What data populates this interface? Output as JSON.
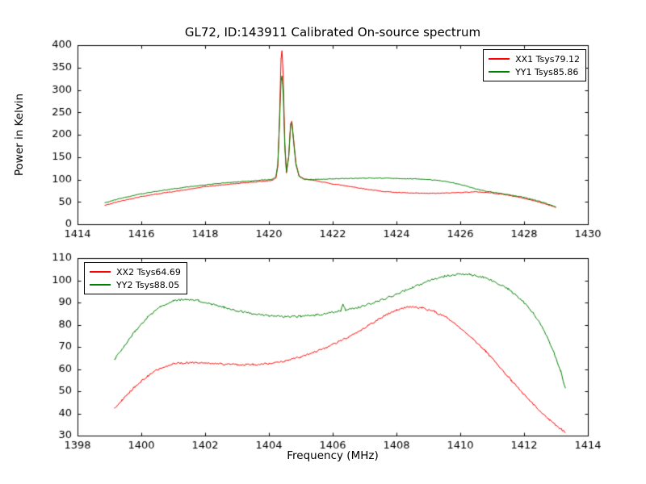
{
  "chart_data": [
    {
      "type": "line",
      "title": "GL72, ID:143911 Calibrated On-source spectrum",
      "xlabel": "",
      "ylabel": "Power in Kelvin",
      "xlim": [
        1414,
        1430
      ],
      "ylim": [
        0,
        400
      ],
      "xticks": [
        1414,
        1416,
        1418,
        1420,
        1422,
        1424,
        1426,
        1428,
        1430
      ],
      "yticks": [
        0,
        50,
        100,
        150,
        200,
        250,
        300,
        350,
        400
      ],
      "grid": false,
      "legend_position": "upper right",
      "series": [
        {
          "name": "XX1 Tsys79.12",
          "color": "#ff0000",
          "noise": 0.7,
          "points": [
            [
              1414.85,
              42
            ],
            [
              1415.3,
              51
            ],
            [
              1416,
              62
            ],
            [
              1416.7,
              70
            ],
            [
              1417.4,
              77
            ],
            [
              1418,
              84
            ],
            [
              1418.7,
              89
            ],
            [
              1419.3,
              93
            ],
            [
              1419.8,
              96
            ],
            [
              1420.1,
              98
            ],
            [
              1420.22,
              103
            ],
            [
              1420.28,
              130
            ],
            [
              1420.33,
              230
            ],
            [
              1420.38,
              370
            ],
            [
              1420.41,
              388
            ],
            [
              1420.45,
              330
            ],
            [
              1420.5,
              180
            ],
            [
              1420.55,
              115
            ],
            [
              1420.62,
              150
            ],
            [
              1420.68,
              225
            ],
            [
              1420.72,
              230
            ],
            [
              1420.78,
              185
            ],
            [
              1420.85,
              135
            ],
            [
              1420.95,
              108
            ],
            [
              1421.1,
              101
            ],
            [
              1421.5,
              97
            ],
            [
              1422,
              90
            ],
            [
              1422.5,
              85
            ],
            [
              1423,
              79
            ],
            [
              1423.5,
              74
            ],
            [
              1424,
              71
            ],
            [
              1424.5,
              69.5
            ],
            [
              1425,
              69
            ],
            [
              1425.5,
              69.5
            ],
            [
              1426,
              71
            ],
            [
              1426.5,
              72.5
            ],
            [
              1427,
              70
            ],
            [
              1427.5,
              65
            ],
            [
              1428,
              58
            ],
            [
              1428.5,
              49
            ],
            [
              1429,
              38
            ]
          ]
        },
        {
          "name": "YY1 Tsys85.86",
          "color": "#008000",
          "noise": 0.7,
          "points": [
            [
              1414.85,
              48
            ],
            [
              1415.3,
              57
            ],
            [
              1416,
              68
            ],
            [
              1416.7,
              76
            ],
            [
              1417.4,
              83
            ],
            [
              1418,
              88
            ],
            [
              1418.7,
              93
            ],
            [
              1419.3,
              96
            ],
            [
              1419.8,
              99
            ],
            [
              1420.1,
              100
            ],
            [
              1420.22,
              106
            ],
            [
              1420.28,
              135
            ],
            [
              1420.33,
              220
            ],
            [
              1420.38,
              320
            ],
            [
              1420.41,
              331
            ],
            [
              1420.45,
              290
            ],
            [
              1420.5,
              170
            ],
            [
              1420.55,
              117
            ],
            [
              1420.62,
              150
            ],
            [
              1420.68,
              220
            ],
            [
              1420.72,
              226
            ],
            [
              1420.78,
              180
            ],
            [
              1420.85,
              132
            ],
            [
              1420.95,
              107
            ],
            [
              1421.1,
              100
            ],
            [
              1421.5,
              100
            ],
            [
              1422,
              101.5
            ],
            [
              1422.5,
              102.5
            ],
            [
              1423,
              103
            ],
            [
              1423.5,
              103
            ],
            [
              1424,
              102.5
            ],
            [
              1424.5,
              101.5
            ],
            [
              1425,
              100
            ],
            [
              1425.4,
              97
            ],
            [
              1425.8,
              92
            ],
            [
              1426.2,
              85
            ],
            [
              1426.6,
              77
            ],
            [
              1427,
              71.5
            ],
            [
              1427.5,
              66
            ],
            [
              1428,
              60
            ],
            [
              1428.5,
              51
            ],
            [
              1429,
              39
            ]
          ]
        }
      ]
    },
    {
      "type": "line",
      "title": "",
      "xlabel": "Frequency (MHz)",
      "ylabel": "",
      "xlim": [
        1398,
        1414
      ],
      "ylim": [
        30,
        110
      ],
      "xticks": [
        1398,
        1400,
        1402,
        1404,
        1406,
        1408,
        1410,
        1412,
        1414
      ],
      "yticks": [
        30,
        40,
        50,
        60,
        70,
        80,
        90,
        100,
        110
      ],
      "grid": false,
      "legend_position": "upper left",
      "series": [
        {
          "name": "XX2 Tsys64.69",
          "color": "#ff0000",
          "noise": 0.45,
          "points": [
            [
              1399.15,
              42
            ],
            [
              1399.4,
              46
            ],
            [
              1399.8,
              52
            ],
            [
              1400.2,
              57
            ],
            [
              1400.6,
              60.5
            ],
            [
              1401,
              62.3
            ],
            [
              1401.5,
              63
            ],
            [
              1402,
              62.8
            ],
            [
              1402.5,
              62.3
            ],
            [
              1403,
              62
            ],
            [
              1403.5,
              62
            ],
            [
              1404,
              62.4
            ],
            [
              1404.5,
              63.5
            ],
            [
              1405,
              65.5
            ],
            [
              1405.5,
              68
            ],
            [
              1406,
              71
            ],
            [
              1406.5,
              74.5
            ],
            [
              1407,
              78.5
            ],
            [
              1407.5,
              83
            ],
            [
              1408,
              86.8
            ],
            [
              1408.4,
              88
            ],
            [
              1408.8,
              87.6
            ],
            [
              1409.2,
              85.8
            ],
            [
              1409.6,
              83
            ],
            [
              1410,
              78.5
            ],
            [
              1410.4,
              73.5
            ],
            [
              1410.8,
              68
            ],
            [
              1411.2,
              61.5
            ],
            [
              1411.6,
              55
            ],
            [
              1412,
              48.5
            ],
            [
              1412.4,
              42.5
            ],
            [
              1412.8,
              37
            ],
            [
              1413.1,
              33.5
            ],
            [
              1413.3,
              31.5
            ]
          ]
        },
        {
          "name": "YY2 Tsys88.05",
          "color": "#008000",
          "noise": 0.45,
          "points": [
            [
              1399.15,
              64
            ],
            [
              1399.4,
              69
            ],
            [
              1399.8,
              77
            ],
            [
              1400.2,
              83.5
            ],
            [
              1400.6,
              88
            ],
            [
              1401,
              90.8
            ],
            [
              1401.4,
              91.5
            ],
            [
              1401.8,
              90.8
            ],
            [
              1402.2,
              89.3
            ],
            [
              1402.6,
              87.8
            ],
            [
              1403,
              86.3
            ],
            [
              1403.5,
              85
            ],
            [
              1404,
              84
            ],
            [
              1404.5,
              83.6
            ],
            [
              1405,
              83.7
            ],
            [
              1405.5,
              84.3
            ],
            [
              1406,
              85.5
            ],
            [
              1406.25,
              86.3
            ],
            [
              1406.32,
              89.5
            ],
            [
              1406.4,
              86.6
            ],
            [
              1406.8,
              87.8
            ],
            [
              1407.2,
              89.5
            ],
            [
              1407.6,
              91.5
            ],
            [
              1408,
              93.8
            ],
            [
              1408.5,
              96.8
            ],
            [
              1409,
              99.7
            ],
            [
              1409.5,
              101.8
            ],
            [
              1409.9,
              102.7
            ],
            [
              1410.3,
              102.6
            ],
            [
              1410.7,
              101.5
            ],
            [
              1411.1,
              99.3
            ],
            [
              1411.5,
              96
            ],
            [
              1411.9,
              91.5
            ],
            [
              1412.3,
              85
            ],
            [
              1412.6,
              78
            ],
            [
              1412.9,
              69
            ],
            [
              1413.15,
              59
            ],
            [
              1413.3,
              51
            ]
          ]
        }
      ]
    }
  ]
}
